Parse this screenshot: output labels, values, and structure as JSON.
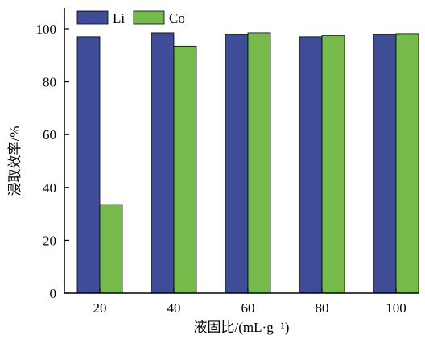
{
  "chart_data": {
    "type": "bar",
    "categories": [
      "20",
      "40",
      "60",
      "80",
      "100"
    ],
    "series": [
      {
        "name": "Li",
        "color": "#3f4c98",
        "values": [
          97,
          98.5,
          98,
          97,
          98
        ]
      },
      {
        "name": "Co",
        "color": "#76ba4b",
        "values": [
          33.5,
          93.5,
          98.5,
          97.5,
          98.2
        ]
      }
    ],
    "xlabel": "液固比/(mL·g⁻¹)",
    "ylabel": "浸取效率/%",
    "ylim": [
      0,
      100
    ],
    "yticks": [
      "0",
      "20",
      "40",
      "60",
      "80",
      "100"
    ],
    "grid": false,
    "legend_position": "top-left"
  }
}
